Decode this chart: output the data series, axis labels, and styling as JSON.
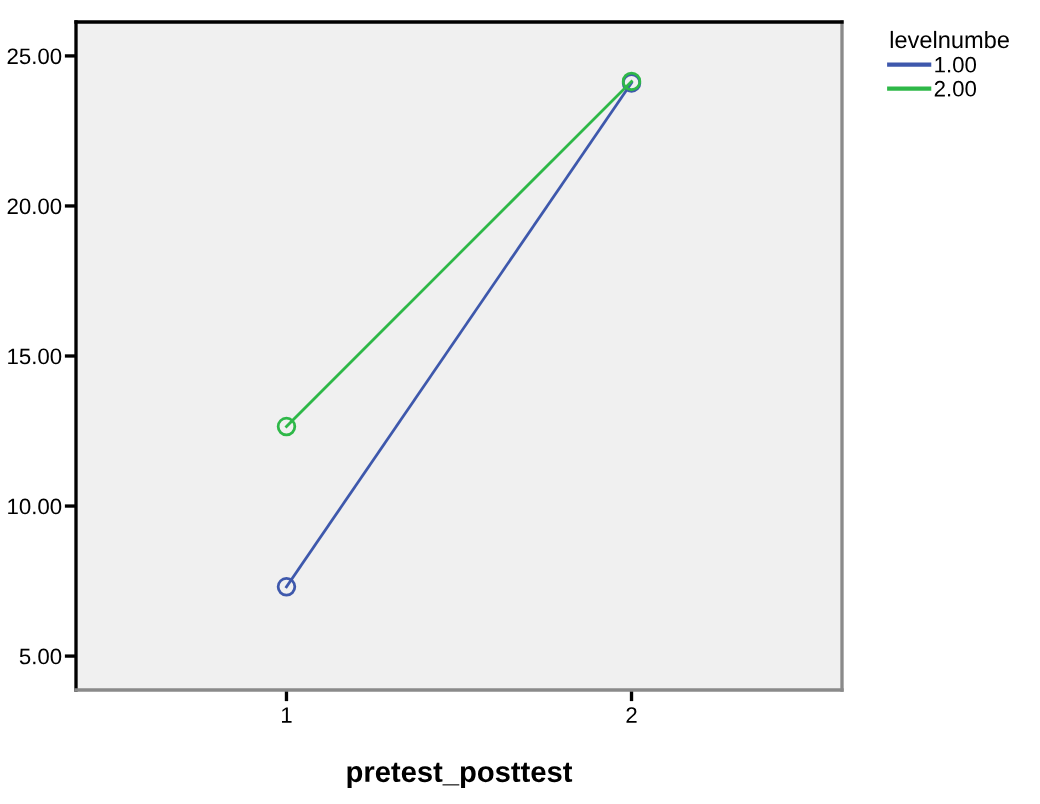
{
  "chart_data": {
    "type": "line",
    "xlabel": "pretest_posttest",
    "legend_title": "levelnumbe",
    "categories": [
      "1",
      "2"
    ],
    "series": [
      {
        "name": "1.00",
        "color": "#3e58ac",
        "values": [
          7.31,
          24.1
        ]
      },
      {
        "name": "2.00",
        "color": "#2eb848",
        "values": [
          12.65,
          24.15
        ]
      }
    ],
    "ylim": [
      3.87,
      26.13
    ],
    "yticks": [
      {
        "value": 5,
        "label": "5.00"
      },
      {
        "value": 10,
        "label": "10.00"
      },
      {
        "value": 15,
        "label": "15.00"
      },
      {
        "value": 20,
        "label": "20.00"
      },
      {
        "value": 25,
        "label": "25.00"
      }
    ],
    "marker": "circle",
    "line_style": "solid",
    "legend": "top right",
    "grid": false
  }
}
